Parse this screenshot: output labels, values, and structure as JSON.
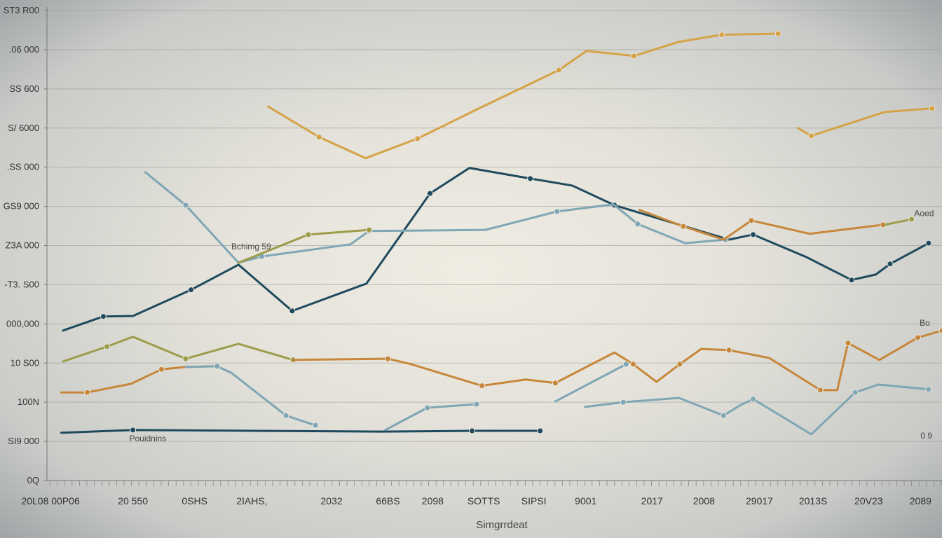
{
  "chart_data": {
    "type": "line",
    "xlabel": "Simgrrdeat",
    "ylabel": "",
    "xlim": [
      0,
      100
    ],
    "ylim": [
      0,
      12
    ],
    "grid": true,
    "y_ticks": [
      {
        "v": 0,
        "label": "0Q"
      },
      {
        "v": 1,
        "label": "SI9 000"
      },
      {
        "v": 2,
        "label": "100N"
      },
      {
        "v": 3,
        "label": "10 S00"
      },
      {
        "v": 4,
        "label": "000,000"
      },
      {
        "v": 5,
        "label": "-T3. S00"
      },
      {
        "v": 6,
        "label": "Z3A 000"
      },
      {
        "v": 7,
        "label": "GS9 000"
      },
      {
        "v": 8,
        "label": ".SS 000"
      },
      {
        "v": 9,
        "label": "S/ 6000"
      },
      {
        "v": 10,
        "label": "SS 600"
      },
      {
        "v": 11,
        "label": ".06 000"
      },
      {
        "v": 12,
        "label": "ST3 R00"
      }
    ],
    "x_ticks": [
      {
        "v": 0.4,
        "label": "20L08 00P06"
      },
      {
        "v": 9.6,
        "label": "20 550"
      },
      {
        "v": 16.5,
        "label": "0SHS"
      },
      {
        "v": 22.9,
        "label": "2IAHS,"
      },
      {
        "v": 31.8,
        "label": "2032"
      },
      {
        "v": 38.1,
        "label": "66BS"
      },
      {
        "v": 43.1,
        "label": "2098"
      },
      {
        "v": 48.8,
        "label": "SOTTS"
      },
      {
        "v": 54.4,
        "label": "SIPSI"
      },
      {
        "v": 60.2,
        "label": "9001"
      },
      {
        "v": 67.6,
        "label": "2017"
      },
      {
        "v": 73.4,
        "label": "2008"
      },
      {
        "v": 79.6,
        "label": "29017"
      },
      {
        "v": 85.6,
        "label": "2013S"
      },
      {
        "v": 91.8,
        "label": "20V23"
      },
      {
        "v": 97.6,
        "label": "2089"
      }
    ],
    "series": [
      {
        "name": "gold-upper",
        "color": "#d6a247",
        "points": [
          [
            24.7,
            9.55
          ],
          [
            30.4,
            8.77
          ],
          [
            35.6,
            8.23
          ],
          [
            41.4,
            8.73
          ],
          [
            47.9,
            9.46
          ],
          [
            57.2,
            10.48
          ],
          [
            60.3,
            10.97
          ],
          [
            65.6,
            10.84
          ],
          [
            70.6,
            11.2
          ],
          [
            75.4,
            11.38
          ],
          [
            81.7,
            11.41
          ]
        ]
      },
      {
        "name": "gold-upper-right",
        "color": "#d6a247",
        "points": [
          [
            83.9,
            9.0
          ],
          [
            85.4,
            8.8
          ],
          [
            93.6,
            9.41
          ],
          [
            98.9,
            9.5
          ]
        ]
      },
      {
        "name": "navy-main",
        "color": "#1f4a5e",
        "points": [
          [
            1.8,
            3.83
          ],
          [
            6.3,
            4.19
          ],
          [
            9.6,
            4.2
          ],
          [
            16.1,
            4.87
          ],
          [
            21.4,
            5.51
          ],
          [
            27.4,
            4.33
          ],
          [
            35.7,
            5.03
          ],
          [
            42.8,
            7.33
          ],
          [
            47.2,
            7.98
          ],
          [
            54.0,
            7.71
          ],
          [
            58.7,
            7.53
          ],
          [
            63.4,
            7.03
          ],
          [
            76.2,
            6.15
          ],
          [
            78.9,
            6.28
          ],
          [
            84.8,
            5.71
          ],
          [
            89.9,
            5.12
          ],
          [
            92.6,
            5.26
          ],
          [
            94.2,
            5.53
          ],
          [
            98.5,
            6.06
          ]
        ]
      },
      {
        "name": "lightblue-upper",
        "color": "#7fa6b5",
        "points": [
          [
            11.0,
            7.87
          ],
          [
            15.5,
            7.03
          ],
          [
            21.4,
            5.56
          ],
          [
            24.0,
            5.72
          ],
          [
            33.9,
            6.03
          ],
          [
            36.0,
            6.37
          ],
          [
            49.0,
            6.4
          ],
          [
            57.0,
            6.87
          ],
          [
            63.3,
            7.05
          ],
          [
            66.0,
            6.55
          ],
          [
            71.3,
            6.06
          ],
          [
            75.8,
            6.15
          ]
        ]
      },
      {
        "name": "olive-upper",
        "color": "#9c9c4a",
        "points": [
          [
            21.4,
            5.56
          ],
          [
            29.2,
            6.28
          ],
          [
            36.0,
            6.4
          ]
        ]
      },
      {
        "name": "orange-mid",
        "color": "#c7873a",
        "points": [
          [
            66.2,
            6.91
          ],
          [
            71.1,
            6.49
          ],
          [
            75.6,
            6.15
          ],
          [
            78.7,
            6.64
          ],
          [
            85.2,
            6.3
          ],
          [
            93.4,
            6.53
          ]
        ]
      },
      {
        "name": "olive-mid-tail",
        "color": "#9c9c4a",
        "points": [
          [
            93.6,
            6.53
          ],
          [
            96.6,
            6.67
          ]
        ]
      },
      {
        "name": "olive-lower",
        "color": "#9c9c4a",
        "points": [
          [
            1.8,
            3.04
          ],
          [
            6.7,
            3.42
          ],
          [
            9.6,
            3.67
          ],
          [
            15.5,
            3.11
          ],
          [
            21.4,
            3.49
          ],
          [
            27.5,
            3.08
          ]
        ]
      },
      {
        "name": "orange-lower",
        "color": "#c7873a",
        "points": [
          [
            27.5,
            3.08
          ],
          [
            38.1,
            3.11
          ],
          [
            40.7,
            2.97
          ],
          [
            48.6,
            2.42
          ],
          [
            53.5,
            2.58
          ],
          [
            56.8,
            2.49
          ],
          [
            63.4,
            3.27
          ],
          [
            65.5,
            2.97
          ],
          [
            68.1,
            2.52
          ],
          [
            70.7,
            2.97
          ],
          [
            73.1,
            3.36
          ],
          [
            76.2,
            3.33
          ],
          [
            80.7,
            3.13
          ],
          [
            86.4,
            2.31
          ],
          [
            88.3,
            2.31
          ],
          [
            89.5,
            3.51
          ],
          [
            93.0,
            3.08
          ],
          [
            97.3,
            3.65
          ],
          [
            100,
            3.83
          ]
        ]
      },
      {
        "name": "orange-bottom",
        "color": "#c7873a",
        "points": [
          [
            1.6,
            2.25
          ],
          [
            4.5,
            2.25
          ],
          [
            9.4,
            2.47
          ],
          [
            12.8,
            2.84
          ],
          [
            15.5,
            2.9
          ],
          [
            19.0,
            2.92
          ]
        ]
      },
      {
        "name": "lightblue-lower",
        "color": "#7fa6b5",
        "points": [
          [
            15.5,
            2.9
          ],
          [
            19.0,
            2.92
          ],
          [
            20.6,
            2.75
          ],
          [
            26.7,
            1.66
          ],
          [
            30.0,
            1.41
          ]
        ]
      },
      {
        "name": "lightblue-lower-2",
        "color": "#7fa6b5",
        "points": [
          [
            37.8,
            1.29
          ],
          [
            42.5,
            1.86
          ],
          [
            48.0,
            1.95
          ]
        ]
      },
      {
        "name": "lightblue-lower-3",
        "color": "#7fa6b5",
        "points": [
          [
            56.8,
            2.02
          ],
          [
            64.7,
            2.97
          ]
        ]
      },
      {
        "name": "lightblue-lower-4",
        "color": "#7fa6b5",
        "points": [
          [
            60.1,
            1.88
          ],
          [
            64.4,
            2.0
          ],
          [
            70.6,
            2.11
          ],
          [
            75.6,
            1.66
          ],
          [
            77.5,
            1.93
          ],
          [
            78.9,
            2.08
          ],
          [
            85.4,
            1.18
          ],
          [
            90.3,
            2.25
          ],
          [
            92.9,
            2.45
          ],
          [
            98.5,
            2.33
          ]
        ]
      },
      {
        "name": "navy-bottom",
        "color": "#1f4a5e",
        "points": [
          [
            1.6,
            1.22
          ],
          [
            9.6,
            1.29
          ],
          [
            37.5,
            1.25
          ],
          [
            47.5,
            1.27
          ],
          [
            55.1,
            1.27
          ]
        ]
      }
    ],
    "annotations": [
      {
        "text": "Bchimg 59",
        "x": 20.6,
        "y": 5.9
      },
      {
        "text": "Pouidnins",
        "x": 9.2,
        "y": 1.0
      },
      {
        "text": "Aoed",
        "x": 96.9,
        "y": 6.75
      },
      {
        "text": "0 9",
        "x": 97.6,
        "y": 1.07
      },
      {
        "text": "Bo",
        "x": 97.5,
        "y": 3.95
      }
    ]
  }
}
